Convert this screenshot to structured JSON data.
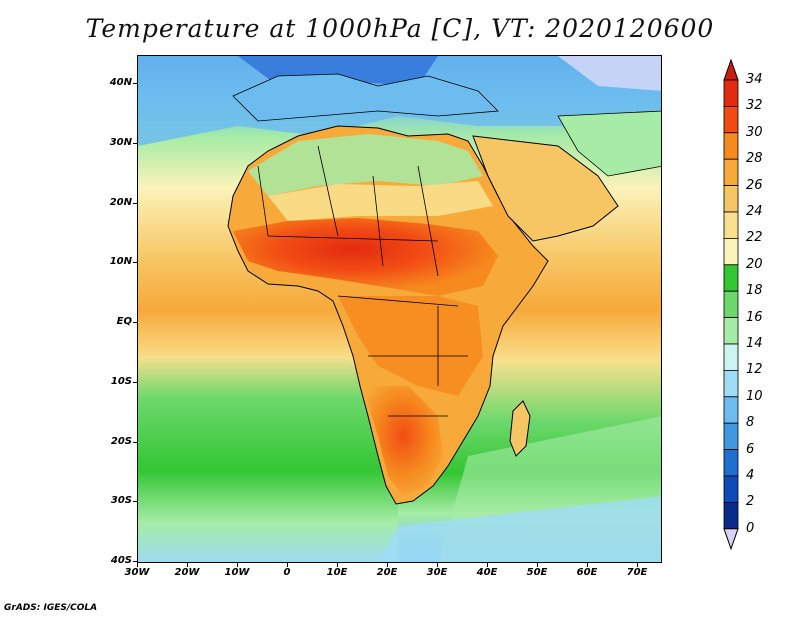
{
  "title": "Temperature at 1000hPa [C], VT: 2020120600",
  "credit": "GrADS: IGES/COLA",
  "map": {
    "lat_labels": [
      "40N",
      "30N",
      "20N",
      "10N",
      "EQ",
      "10S",
      "20S",
      "30S",
      "40S"
    ],
    "lon_labels": [
      "30W",
      "20W",
      "10W",
      "0",
      "10E",
      "20E",
      "30E",
      "40E",
      "50E",
      "60E",
      "70E"
    ],
    "ocean_color": "#5bbf5b",
    "land_hot_color": "#e0401a"
  },
  "colorbar": {
    "labels": [
      "34",
      "32",
      "30",
      "28",
      "26",
      "24",
      "22",
      "20",
      "18",
      "16",
      "14",
      "12",
      "10",
      "8",
      "6",
      "4",
      "2",
      "0"
    ],
    "colors": [
      "#e22b10",
      "#f24c14",
      "#f68a1e",
      "#f7a93a",
      "#f7c664",
      "#f8e08e",
      "#fbf3ba",
      "#33c633",
      "#6cd86c",
      "#a6eca6",
      "#ccf4f0",
      "#9fdcf6",
      "#6cbcf0",
      "#3e98e2",
      "#1f6fd0",
      "#0f4ab6",
      "#0a2a8c"
    ]
  }
}
